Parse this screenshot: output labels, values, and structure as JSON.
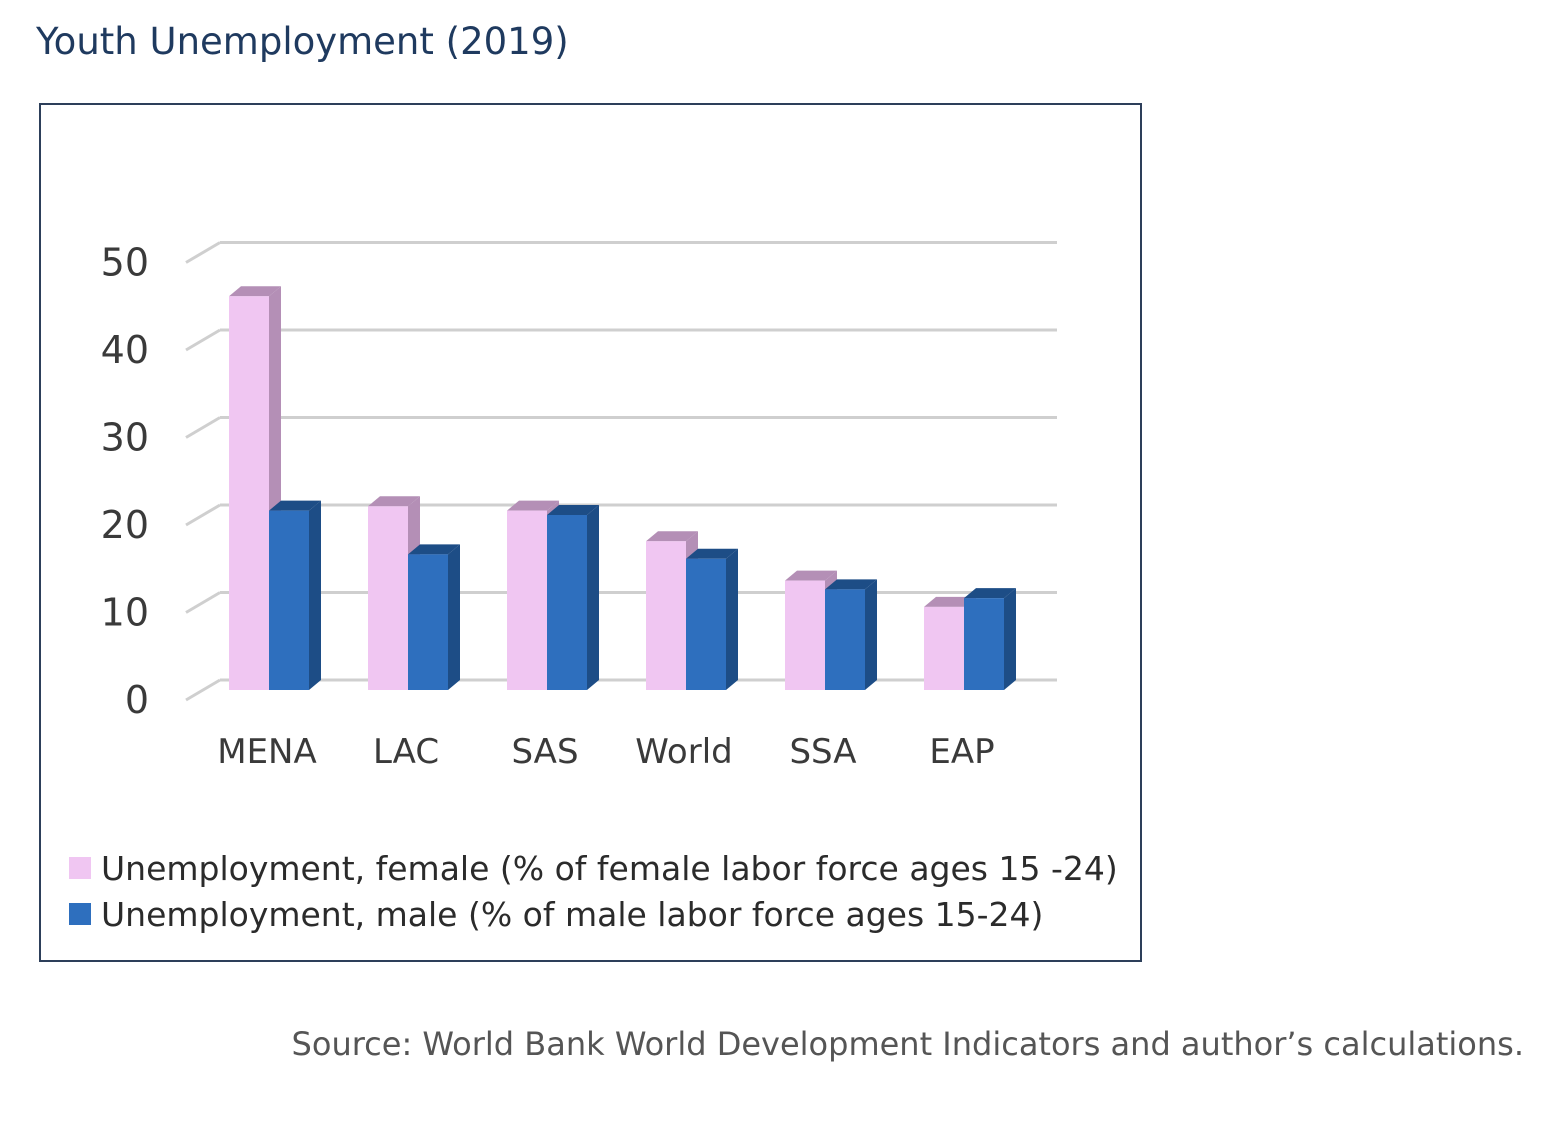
{
  "title": "Youth Unemployment (2019)",
  "source": "Source: World Bank World Development Indicators and author’s calculations.",
  "colors": {
    "female": "#f0c6f2",
    "female_dark": "#b48fb6",
    "male": "#2e6fbe",
    "male_dark": "#1d4d86",
    "grid": "#cfcfcf",
    "frame": "#2d3f5a"
  },
  "chart_data": {
    "type": "bar",
    "categories": [
      "MENA",
      "LAC",
      "SAS",
      "World",
      "SSA",
      "EAP"
    ],
    "series": [
      {
        "name": "Unemployment, female (% of female labor force ages 15 -24)",
        "values": [
          45,
          21,
          20.5,
          17,
          12.5,
          9.5
        ]
      },
      {
        "name": "Unemployment, male (% of male labor force ages 15-24)",
        "values": [
          20.5,
          15.5,
          20,
          15,
          11.5,
          10.5
        ]
      }
    ],
    "yticks": [
      "0",
      "10",
      "20",
      "30",
      "40",
      "50"
    ],
    "ylim": [
      0,
      50
    ],
    "grid": true,
    "legend": "bottom",
    "xlabel": "",
    "ylabel": ""
  }
}
